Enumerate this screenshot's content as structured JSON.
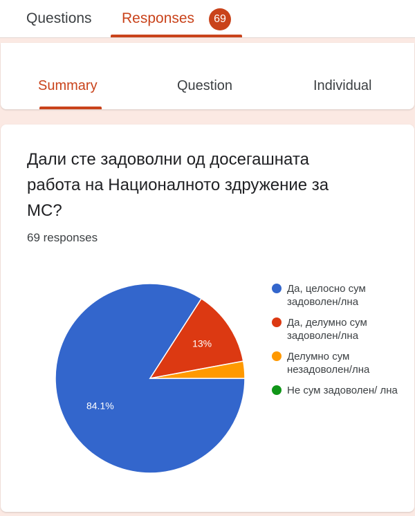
{
  "tabs": {
    "questions": "Questions",
    "responses": "Responses",
    "responses_count": "69"
  },
  "subtabs": {
    "summary": "Summary",
    "question": "Question",
    "individual": "Individual"
  },
  "question": {
    "title": "Дали сте задоволни од досегашната работа на Националното здружение за МС?",
    "responses": "69 responses"
  },
  "chart_data": {
    "type": "pie",
    "slices": [
      {
        "label": "Да, целосно сум задоволен/лна",
        "value": 84.1,
        "color": "#3366cc",
        "display": "84.1%"
      },
      {
        "label": "Да, делумно сум задоволен/лна",
        "value": 13.0,
        "color": "#dc3912",
        "display": "13%"
      },
      {
        "label": "Делумно сум незадоволен/лна",
        "value": 2.9,
        "color": "#ff9900",
        "display": ""
      },
      {
        "label": "Не сум задоволен/ лна",
        "value": 0,
        "color": "#109618",
        "display": ""
      }
    ],
    "legend_position": "right"
  }
}
